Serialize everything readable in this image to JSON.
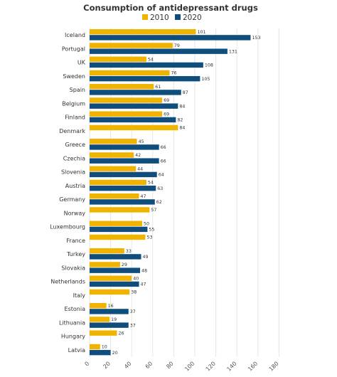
{
  "chart_data": {
    "type": "bar",
    "orientation": "horizontal",
    "title": "Consumption of antidepressant drugs",
    "categories": [
      "Iceland",
      "Portugal",
      "UK",
      "Sweden",
      "Spain",
      "Belgium",
      "Finland",
      "Denmark",
      "Greece",
      "Czechia",
      "Slovenia",
      "Austria",
      "Germany",
      "Norway",
      "Luxembourg",
      "France",
      "Turkey",
      "Slovakia",
      "Netherlands",
      "Italy",
      "Estonia",
      "Lithuania",
      "Hungary",
      "Latvia"
    ],
    "series": [
      {
        "name": "2010",
        "color": "#f0b400",
        "values": [
          101,
          79,
          54,
          76,
          61,
          69,
          69,
          84,
          45,
          42,
          44,
          54,
          47,
          57,
          50,
          53,
          33,
          29,
          40,
          38,
          16,
          19,
          26,
          10
        ]
      },
      {
        "name": "2020",
        "color": "#0f4d7d",
        "values": [
          153,
          131,
          108,
          105,
          87,
          84,
          82,
          null,
          66,
          66,
          64,
          63,
          62,
          null,
          55,
          null,
          49,
          48,
          47,
          null,
          37,
          37,
          null,
          20
        ]
      }
    ],
    "xlim": [
      0,
      180
    ],
    "xticks": [
      "0",
      "20",
      "40",
      "60",
      "80",
      "100",
      "120",
      "140",
      "160",
      "180"
    ],
    "grid": "vertical",
    "legend": "top-center"
  }
}
